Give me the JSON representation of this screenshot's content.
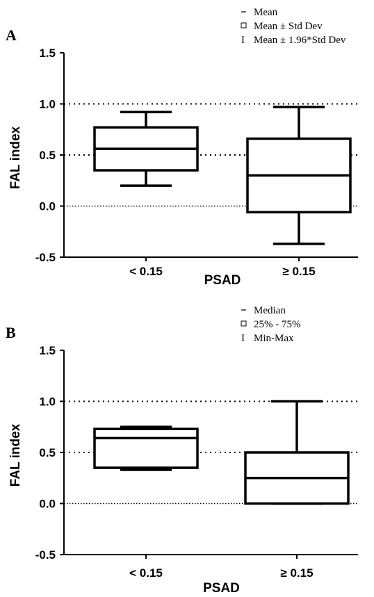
{
  "chart_data": [
    {
      "type": "box",
      "panel": "A",
      "xlabel": "PSAD",
      "ylabel": "FAL index",
      "ylim": [
        -0.5,
        1.5
      ],
      "yticks": [
        "-0.5",
        "0.0",
        "0.5",
        "1.0",
        "1.5"
      ],
      "ytick_values": [
        -0.5,
        0.0,
        0.5,
        1.0,
        1.5
      ],
      "reference_lines": [
        0.0,
        0.5,
        1.0
      ],
      "categories": [
        "< 0.15",
        "≥ 0.15"
      ],
      "boxes": [
        {
          "category": "< 0.15",
          "lower_whisker": 0.2,
          "q1": 0.35,
          "center": 0.56,
          "q3": 0.77,
          "upper_whisker": 0.92
        },
        {
          "category": "≥ 0.15",
          "lower_whisker": -0.37,
          "q1": -0.06,
          "center": 0.3,
          "q3": 0.66,
          "upper_whisker": 0.97
        }
      ],
      "legend": [
        "Mean",
        "Mean ± Std Dev",
        "Mean ± 1.96*Std Dev"
      ],
      "legend_symbols": [
        "–",
        "▫",
        "I"
      ]
    },
    {
      "type": "box",
      "panel": "B",
      "xlabel": "PSAD",
      "ylabel": "FAL index",
      "ylim": [
        -0.5,
        1.5
      ],
      "yticks": [
        "-0.5",
        "0.0",
        "0.5",
        "1.0",
        "1.5"
      ],
      "ytick_values": [
        -0.5,
        0.0,
        0.5,
        1.0,
        1.5
      ],
      "reference_lines": [
        0.0,
        0.5,
        1.0
      ],
      "categories": [
        "< 0.15",
        "≥ 0.15"
      ],
      "boxes": [
        {
          "category": "< 0.15",
          "lower_whisker": 0.33,
          "q1": 0.35,
          "center": 0.64,
          "q3": 0.73,
          "upper_whisker": 0.75
        },
        {
          "category": "≥ 0.15",
          "lower_whisker": 0.0,
          "q1": 0.0,
          "center": 0.25,
          "q3": 0.5,
          "upper_whisker": 1.0
        }
      ],
      "legend": [
        "Median",
        "25% - 75%",
        "Min-Max"
      ],
      "legend_symbols": [
        "–",
        "▫",
        "I"
      ]
    }
  ]
}
